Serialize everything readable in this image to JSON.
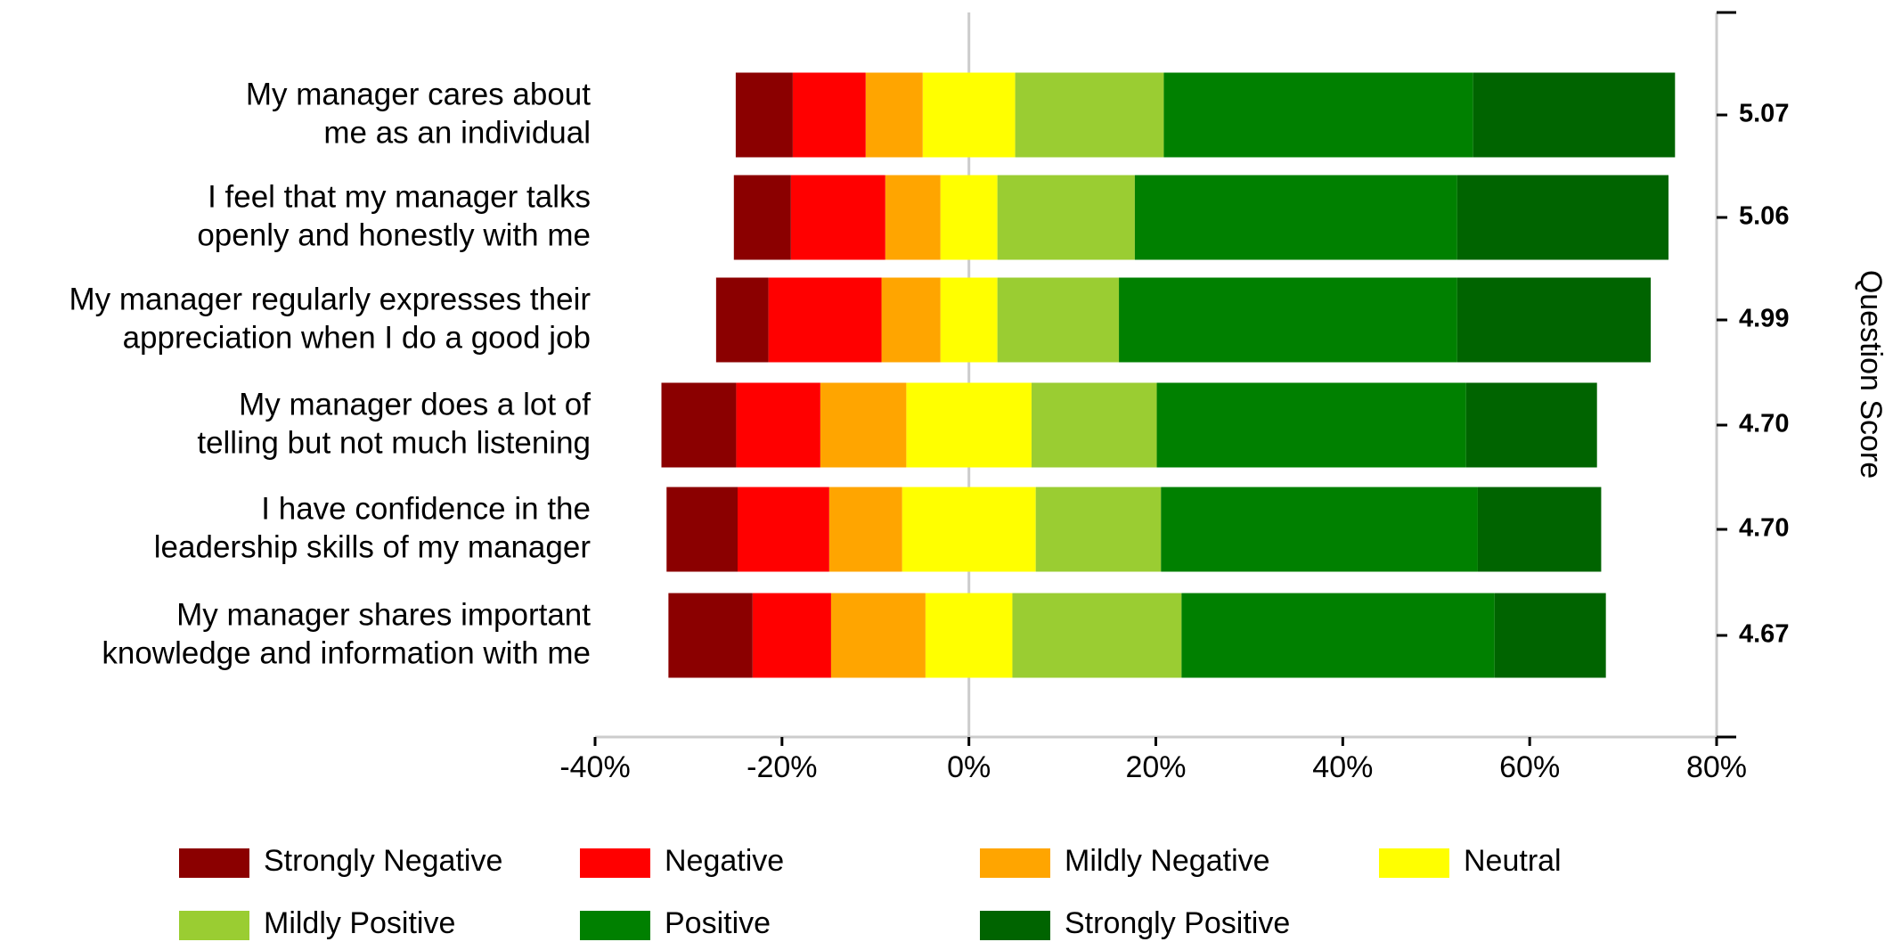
{
  "chart_data": {
    "type": "diverging_bar",
    "categories": [
      [
        "My manager cares about",
        "me as an individual"
      ],
      [
        "I feel that my manager talks",
        "openly and honestly with me"
      ],
      [
        "My manager regularly expresses their",
        "appreciation when I do a good job"
      ],
      [
        "My manager does a lot of",
        "telling but not much listening"
      ],
      [
        "I have confidence in the",
        "leadership skills of my manager"
      ],
      [
        "My manager shares important",
        "knowledge and information with me"
      ]
    ],
    "series": [
      {
        "name": "Strongly Negative",
        "color": "#8b0000",
        "values": [
          6.1,
          6.1,
          5.6,
          8.0,
          7.6,
          9.0
        ]
      },
      {
        "name": "Negative",
        "color": "#ff0000",
        "values": [
          7.8,
          10.1,
          12.1,
          9.0,
          9.8,
          8.4
        ]
      },
      {
        "name": "Mildly Negative",
        "color": "#ffa500",
        "values": [
          6.1,
          5.9,
          6.3,
          9.2,
          7.8,
          10.1
        ]
      },
      {
        "name": "Neutral",
        "color": "#ffff00",
        "values": [
          9.9,
          6.1,
          6.1,
          13.4,
          14.3,
          9.3
        ]
      },
      {
        "name": "Mildly Positive",
        "color": "#9acd32",
        "values": [
          15.9,
          14.7,
          13.0,
          13.4,
          13.4,
          18.1
        ]
      },
      {
        "name": "Positive",
        "color": "#008000",
        "values": [
          33.1,
          34.5,
          36.2,
          33.1,
          33.9,
          33.5
        ]
      },
      {
        "name": "Strongly Positive",
        "color": "#006400",
        "values": [
          21.6,
          22.6,
          20.7,
          14.0,
          13.2,
          11.9
        ]
      }
    ],
    "xlim": [
      -40,
      80
    ],
    "xticks": [
      {
        "value": -40,
        "label": "-40%"
      },
      {
        "value": -20,
        "label": "-20%"
      },
      {
        "value": 0,
        "label": "0%"
      },
      {
        "value": 20,
        "label": "20%"
      },
      {
        "value": 40,
        "label": "40%"
      },
      {
        "value": 60,
        "label": "60%"
      },
      {
        "value": 80,
        "label": "80%"
      }
    ],
    "y2label": "Question Score",
    "y2ticks": [
      "5.07",
      "5.06",
      "4.99",
      "4.70",
      "4.70",
      "4.67"
    ]
  }
}
